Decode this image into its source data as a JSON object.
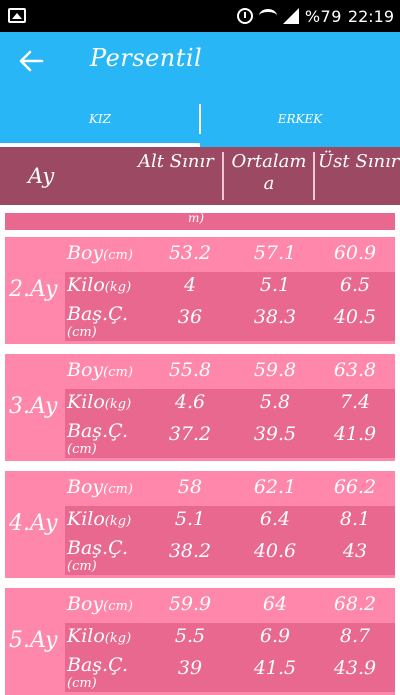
{
  "status_bar": {
    "battery": "%79",
    "time": "22:19"
  },
  "app_bar": {
    "title": "Persentil"
  },
  "tabs": [
    {
      "label": "KIZ",
      "selected": true
    },
    {
      "label": "ERKEK",
      "selected": false
    }
  ],
  "table": {
    "headers": {
      "month": "Ay",
      "lower": "Alt Sınır",
      "mean": "Ortalam a",
      "upper": "Üst Sınır"
    },
    "partial_row_fragment": "m)",
    "row_labels": {
      "boy": "Boy",
      "boy_unit": "(cm)",
      "kilo": "Kilo",
      "kilo_unit": "(kg)",
      "bas": "Baş.Ç.",
      "bas_unit": "(cm)"
    },
    "months": [
      {
        "label": "2.Ay",
        "boy": [
          "53.2",
          "57.1",
          "60.9"
        ],
        "kilo": [
          "4",
          "5.1",
          "6.5"
        ],
        "bas": [
          "36",
          "38.3",
          "40.5"
        ]
      },
      {
        "label": "3.Ay",
        "boy": [
          "55.8",
          "59.8",
          "63.8"
        ],
        "kilo": [
          "4.6",
          "5.8",
          "7.4"
        ],
        "bas": [
          "37.2",
          "39.5",
          "41.9"
        ]
      },
      {
        "label": "4.Ay",
        "boy": [
          "58",
          "62.1",
          "66.2"
        ],
        "kilo": [
          "5.1",
          "6.4",
          "8.1"
        ],
        "bas": [
          "38.2",
          "40.6",
          "43"
        ]
      },
      {
        "label": "5.Ay",
        "boy": [
          "59.9",
          "64",
          "68.2"
        ],
        "kilo": [
          "5.5",
          "6.9",
          "8.7"
        ],
        "bas": [
          "39",
          "41.5",
          "43.9"
        ]
      }
    ]
  },
  "colors": {
    "app_bar": "#29b6f6",
    "header": "#9c4a63",
    "card": "#ff87ab",
    "card_alt": "#e86890"
  }
}
